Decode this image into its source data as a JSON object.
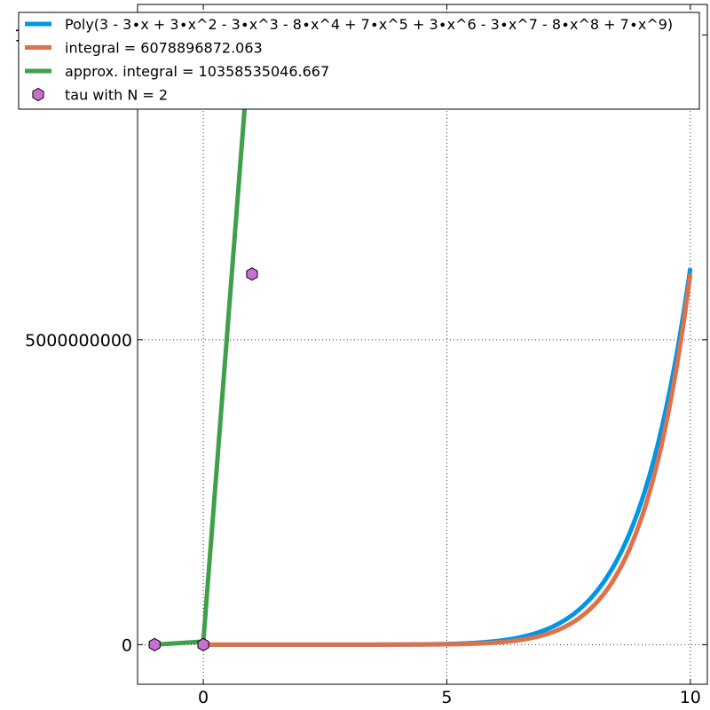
{
  "chart_data": {
    "type": "line",
    "title": "",
    "xlabel": "",
    "ylabel": "",
    "xlim": [
      -1.35,
      10.35
    ],
    "ylim": [
      -650000000,
      10500000000
    ],
    "grid": true,
    "legend_position": "top",
    "x_ticks": [
      0,
      5,
      10
    ],
    "x_tick_labels": [
      "0",
      "5",
      "10"
    ],
    "y_ticks": [
      0,
      5000000000,
      10000000000
    ],
    "y_tick_labels": [
      "0",
      "5000000000",
      "10000000000"
    ],
    "series": [
      {
        "name": "Poly(3 - 3∙x + 3∙x^2 - 3∙x^3 - 8∙x^4 + 7∙x^5 + 3∙x^6 - 3∙x^7 - 8∙x^8 + 7∙x^9)",
        "color": "#0096e6",
        "style": "line",
        "coefficients": [
          3,
          -3,
          3,
          -3,
          -8,
          7,
          3,
          -3,
          -8,
          7
        ],
        "x_range": [
          0,
          10
        ]
      },
      {
        "name": "integral = 6078896872.063",
        "color": "#e0704a",
        "style": "line",
        "coefficients": [
          0,
          3,
          -1.5,
          1,
          -0.75,
          -1.6,
          1.1666666667,
          0.4285714286,
          -0.375,
          -0.8888888889,
          0.7
        ],
        "x_range": [
          0,
          10
        ]
      },
      {
        "name": "approx. integral = 10358535046.667",
        "color": "#3ea14a",
        "style": "line",
        "x": [
          -1,
          0,
          1
        ],
        "y": [
          0,
          50000000,
          10358535046.667
        ]
      },
      {
        "name": "tau with N = 2",
        "color": "#c86fd4",
        "style": "marker",
        "marker": "hexagon",
        "x": [
          -1,
          0,
          1
        ],
        "y": [
          0,
          0,
          6078896872.063
        ]
      }
    ]
  }
}
